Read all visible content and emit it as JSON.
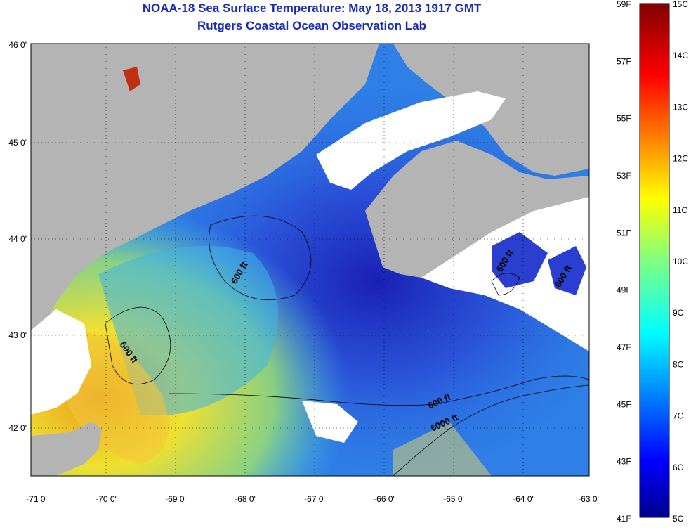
{
  "header": {
    "title": "NOAA-18 Sea Surface Temperature:  May 18, 2013 1917 GMT",
    "subtitle": "Rutgers Coastal Ocean Observation Lab"
  },
  "axes": {
    "lat_ticks": [
      "46 0'",
      "45 0'",
      "44 0'",
      "43 0'",
      "42 0'"
    ],
    "lon_ticks": [
      "-71 0'",
      "-70 0'",
      "-69 0'",
      "-68 0'",
      "-67 0'",
      "-66 0'",
      "-65 0'",
      "-64 0'",
      "-63 0'"
    ],
    "lat_range": [
      41.5,
      46.0
    ],
    "lon_range": [
      -71.0,
      -63.0
    ]
  },
  "colorbar": {
    "fahrenheit": [
      "59F",
      "57F",
      "55F",
      "53F",
      "51F",
      "49F",
      "47F",
      "45F",
      "43F",
      "41F"
    ],
    "celsius": [
      "15C",
      "14C",
      "13C",
      "12C",
      "11C",
      "10C",
      "9C",
      "8C",
      "7C",
      "6C",
      "5C"
    ],
    "range_c": [
      5,
      15
    ]
  },
  "contours": [
    {
      "label": "600 ft"
    },
    {
      "label": "600 ft"
    },
    {
      "label": "600 ft"
    },
    {
      "label": "600 ft"
    },
    {
      "label": "600 ft"
    },
    {
      "label": "6000 ft"
    }
  ],
  "colors": {
    "land": "#b4b4b4",
    "cloud": "#ffffff",
    "title": "#1a2bb8"
  }
}
